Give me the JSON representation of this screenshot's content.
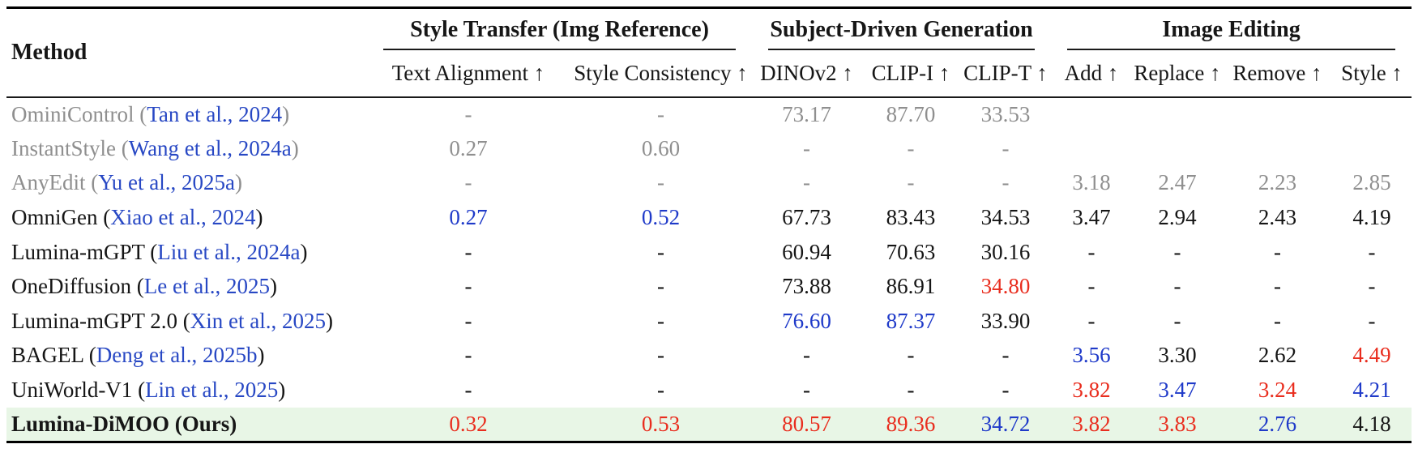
{
  "colors": {
    "text": "#161616",
    "muted_gray": "#8f8f8f",
    "best_red": "#e92d1e",
    "second_blue": "#1f3ac9",
    "citation_blue": "#2848c4",
    "highlight_green": "#e8f6e6"
  },
  "table": {
    "method_header": "Method",
    "groups": [
      {
        "label": "Style Transfer (Img Reference)",
        "columns": [
          "Text Alignment ↑",
          "Style Consistency ↑"
        ]
      },
      {
        "label": "Subject-Driven Generation",
        "columns": [
          "DINOv2 ↑",
          "CLIP-I ↑",
          "CLIP-T ↑"
        ]
      },
      {
        "label": "Image Editing",
        "columns": [
          "Add ↑",
          "Replace ↑",
          "Remove ↑",
          "Style ↑"
        ]
      }
    ],
    "rows": [
      {
        "method": "OminiControl",
        "citation": "Tan et al., 2024",
        "muted": true,
        "highlight": false,
        "cells": [
          {
            "text": "-",
            "color": "gray"
          },
          {
            "text": "-",
            "color": "gray"
          },
          {
            "text": "73.17",
            "color": "gray"
          },
          {
            "text": "87.70",
            "color": "gray"
          },
          {
            "text": "33.53",
            "color": "gray"
          },
          {
            "text": "",
            "color": "gray"
          },
          {
            "text": "",
            "color": "gray"
          },
          {
            "text": "",
            "color": "gray"
          },
          {
            "text": "",
            "color": "gray"
          }
        ]
      },
      {
        "method": "InstantStyle",
        "citation": "Wang et al., 2024a",
        "muted": true,
        "highlight": false,
        "cells": [
          {
            "text": "0.27",
            "color": "gray"
          },
          {
            "text": "0.60",
            "color": "gray"
          },
          {
            "text": "-",
            "color": "gray"
          },
          {
            "text": "-",
            "color": "gray"
          },
          {
            "text": "-",
            "color": "gray"
          },
          {
            "text": "",
            "color": "gray"
          },
          {
            "text": "",
            "color": "gray"
          },
          {
            "text": "",
            "color": "gray"
          },
          {
            "text": "",
            "color": "gray"
          }
        ]
      },
      {
        "method": "AnyEdit",
        "citation": "Yu et al., 2025a",
        "muted": true,
        "highlight": false,
        "cells": [
          {
            "text": "-",
            "color": "gray"
          },
          {
            "text": "-",
            "color": "gray"
          },
          {
            "text": "-",
            "color": "gray"
          },
          {
            "text": "-",
            "color": "gray"
          },
          {
            "text": "-",
            "color": "gray"
          },
          {
            "text": "3.18",
            "color": "gray"
          },
          {
            "text": "2.47",
            "color": "gray"
          },
          {
            "text": "2.23",
            "color": "gray"
          },
          {
            "text": "2.85",
            "color": "gray"
          }
        ]
      },
      {
        "method": "OmniGen",
        "citation": "Xiao et al., 2024",
        "muted": false,
        "highlight": false,
        "cells": [
          {
            "text": "0.27",
            "color": "blue"
          },
          {
            "text": "0.52",
            "color": "blue"
          },
          {
            "text": "67.73",
            "color": "black"
          },
          {
            "text": "83.43",
            "color": "black"
          },
          {
            "text": "34.53",
            "color": "black"
          },
          {
            "text": "3.47",
            "color": "black"
          },
          {
            "text": "2.94",
            "color": "black"
          },
          {
            "text": "2.43",
            "color": "black"
          },
          {
            "text": "4.19",
            "color": "black"
          }
        ]
      },
      {
        "method": "Lumina-mGPT",
        "citation": "Liu et al., 2024a",
        "muted": false,
        "highlight": false,
        "cells": [
          {
            "text": "-",
            "color": "black"
          },
          {
            "text": "-",
            "color": "black"
          },
          {
            "text": "60.94",
            "color": "black"
          },
          {
            "text": "70.63",
            "color": "black"
          },
          {
            "text": "30.16",
            "color": "black"
          },
          {
            "text": "-",
            "color": "black"
          },
          {
            "text": "-",
            "color": "black"
          },
          {
            "text": "-",
            "color": "black"
          },
          {
            "text": "-",
            "color": "black"
          }
        ]
      },
      {
        "method": "OneDiffusion",
        "citation": "Le et al., 2025",
        "muted": false,
        "highlight": false,
        "cells": [
          {
            "text": "-",
            "color": "black"
          },
          {
            "text": "-",
            "color": "black"
          },
          {
            "text": "73.88",
            "color": "black"
          },
          {
            "text": "86.91",
            "color": "black"
          },
          {
            "text": "34.80",
            "color": "red"
          },
          {
            "text": "-",
            "color": "black"
          },
          {
            "text": "-",
            "color": "black"
          },
          {
            "text": "-",
            "color": "black"
          },
          {
            "text": "-",
            "color": "black"
          }
        ]
      },
      {
        "method": "Lumina-mGPT 2.0",
        "citation": "Xin et al., 2025",
        "muted": false,
        "highlight": false,
        "cells": [
          {
            "text": "-",
            "color": "black"
          },
          {
            "text": "-",
            "color": "black"
          },
          {
            "text": "76.60",
            "color": "blue"
          },
          {
            "text": "87.37",
            "color": "blue"
          },
          {
            "text": "33.90",
            "color": "black"
          },
          {
            "text": "-",
            "color": "black"
          },
          {
            "text": "-",
            "color": "black"
          },
          {
            "text": "-",
            "color": "black"
          },
          {
            "text": "-",
            "color": "black"
          }
        ]
      },
      {
        "method": "BAGEL",
        "citation": "Deng et al., 2025b",
        "muted": false,
        "highlight": false,
        "cells": [
          {
            "text": "-",
            "color": "black"
          },
          {
            "text": "-",
            "color": "black"
          },
          {
            "text": "-",
            "color": "black"
          },
          {
            "text": "-",
            "color": "black"
          },
          {
            "text": "-",
            "color": "black"
          },
          {
            "text": "3.56",
            "color": "blue"
          },
          {
            "text": "3.30",
            "color": "black"
          },
          {
            "text": "2.62",
            "color": "black"
          },
          {
            "text": "4.49",
            "color": "red"
          }
        ]
      },
      {
        "method": "UniWorld-V1",
        "citation": "Lin et al., 2025",
        "muted": false,
        "highlight": false,
        "cells": [
          {
            "text": "-",
            "color": "black"
          },
          {
            "text": "-",
            "color": "black"
          },
          {
            "text": "-",
            "color": "black"
          },
          {
            "text": "-",
            "color": "black"
          },
          {
            "text": "-",
            "color": "black"
          },
          {
            "text": "3.82",
            "color": "red"
          },
          {
            "text": "3.47",
            "color": "blue"
          },
          {
            "text": "3.24",
            "color": "red"
          },
          {
            "text": "4.21",
            "color": "blue"
          }
        ]
      },
      {
        "method": "Lumina-DiMOO (Ours)",
        "citation": null,
        "muted": false,
        "highlight": true,
        "cells": [
          {
            "text": "0.32",
            "color": "red"
          },
          {
            "text": "0.53",
            "color": "red"
          },
          {
            "text": "80.57",
            "color": "red"
          },
          {
            "text": "89.36",
            "color": "red"
          },
          {
            "text": "34.72",
            "color": "blue"
          },
          {
            "text": "3.82",
            "color": "red"
          },
          {
            "text": "3.83",
            "color": "red"
          },
          {
            "text": "2.76",
            "color": "blue"
          },
          {
            "text": "4.18",
            "color": "black"
          }
        ]
      }
    ]
  }
}
